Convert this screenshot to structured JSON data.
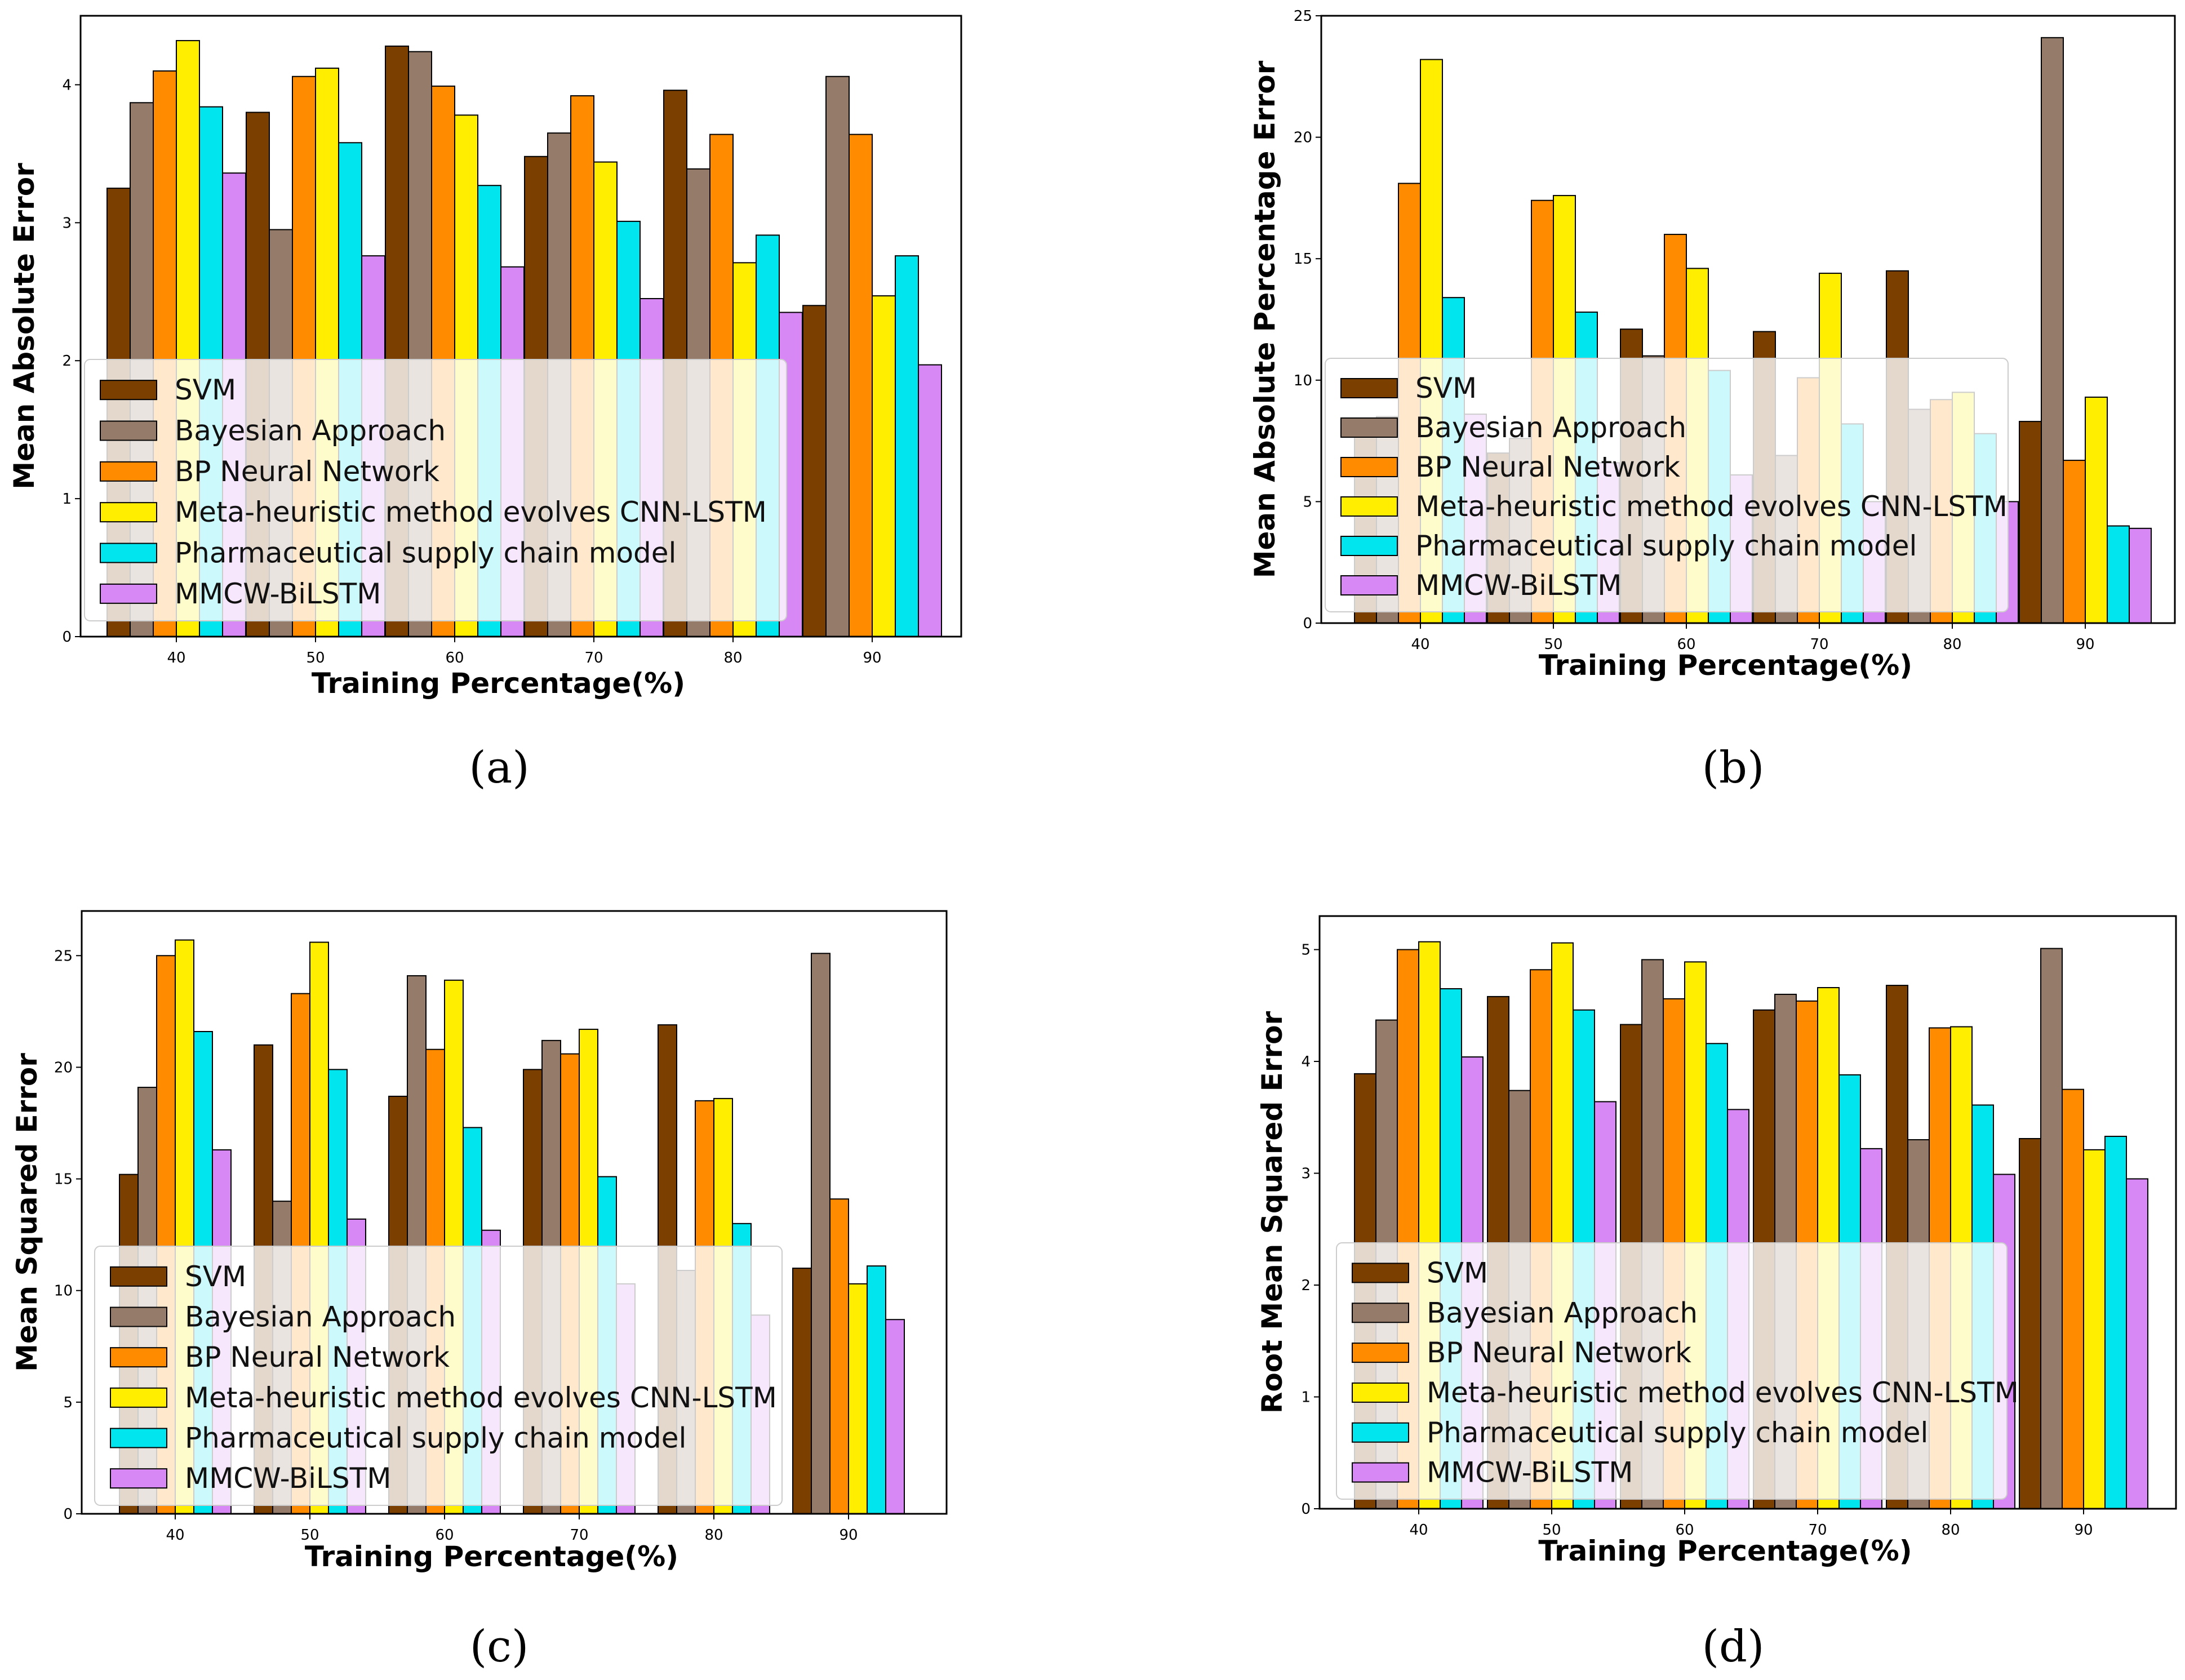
{
  "legend_colors": {
    "SVM": "#7b3f00",
    "Bayesian Approach": "#957b69",
    "BP Neural Network": "#ff8c00",
    "Meta-heuristic method evolves CNN-LSTM": "#ffee00",
    "Pharmaceutical supply chain model": "#00e5ee",
    "MMCW-BiLSTM": "#d888f5"
  },
  "chart_data": [
    {
      "panel": "(a)",
      "type": "bar",
      "xlabel": "Training Percentage(%)",
      "ylabel": "Mean Absolute Error",
      "categories": [
        "40",
        "50",
        "60",
        "70",
        "80",
        "90"
      ],
      "ylim": [
        0,
        4.5
      ],
      "yticks": [
        "0",
        "1",
        "2",
        "3",
        "4"
      ],
      "legend_position": "center-left",
      "series": [
        {
          "name": "SVM",
          "values": [
            3.25,
            3.8,
            4.28,
            3.48,
            3.96,
            2.4
          ]
        },
        {
          "name": "Bayesian Approach",
          "values": [
            3.87,
            2.95,
            4.24,
            3.65,
            3.39,
            4.06
          ]
        },
        {
          "name": "BP Neural Network",
          "values": [
            4.1,
            4.06,
            3.99,
            3.92,
            3.64,
            3.64
          ]
        },
        {
          "name": "Meta-heuristic method evolves CNN-LSTM",
          "values": [
            4.32,
            4.12,
            3.78,
            3.44,
            2.71,
            2.47
          ]
        },
        {
          "name": "Pharmaceutical supply chain model",
          "values": [
            3.84,
            3.58,
            3.27,
            3.01,
            2.91,
            2.76
          ]
        },
        {
          "name": "MMCW-BiLSTM",
          "values": [
            3.36,
            2.76,
            2.68,
            2.45,
            2.35,
            1.97
          ]
        }
      ]
    },
    {
      "panel": "(b)",
      "type": "bar",
      "xlabel": "Training Percentage(%)",
      "ylabel": "Mean Absolute Percentage Error",
      "categories": [
        "40",
        "50",
        "60",
        "70",
        "80",
        "90"
      ],
      "ylim": [
        0,
        25
      ],
      "yticks": [
        "0",
        "5",
        "10",
        "15",
        "20",
        "25"
      ],
      "legend_position": "center-left",
      "series": [
        {
          "name": "SVM",
          "values": [
            8.2,
            7.0,
            12.1,
            12.0,
            14.5,
            8.3
          ]
        },
        {
          "name": "Bayesian Approach",
          "values": [
            8.5,
            7.6,
            11.0,
            6.9,
            8.8,
            24.1
          ]
        },
        {
          "name": "BP Neural Network",
          "values": [
            18.1,
            17.4,
            16.0,
            10.1,
            9.2,
            6.7
          ]
        },
        {
          "name": "Meta-heuristic method evolves CNN-LSTM",
          "values": [
            23.2,
            17.6,
            14.6,
            14.4,
            9.5,
            9.3
          ]
        },
        {
          "name": "Pharmaceutical supply chain model",
          "values": [
            13.4,
            12.8,
            10.4,
            8.2,
            7.8,
            4.0
          ]
        },
        {
          "name": "MMCW-BiLSTM",
          "values": [
            8.6,
            6.6,
            6.1,
            5.0,
            5.0,
            3.9
          ]
        }
      ]
    },
    {
      "panel": "(c)",
      "type": "bar",
      "xlabel": "Training Percentage(%)",
      "ylabel": "Mean Squared Error",
      "categories": [
        "40",
        "50",
        "60",
        "70",
        "80",
        "90"
      ],
      "ylim": [
        0,
        27
      ],
      "yticks": [
        "0",
        "5",
        "10",
        "15",
        "20",
        "25"
      ],
      "legend_position": "center-left",
      "series": [
        {
          "name": "SVM",
          "values": [
            15.2,
            21.0,
            18.7,
            19.9,
            21.9,
            11.0
          ]
        },
        {
          "name": "Bayesian Approach",
          "values": [
            19.1,
            14.0,
            24.1,
            21.2,
            10.9,
            25.1
          ]
        },
        {
          "name": "BP Neural Network",
          "values": [
            25.0,
            23.3,
            20.8,
            20.6,
            18.5,
            14.1
          ]
        },
        {
          "name": "Meta-heuristic method evolves CNN-LSTM",
          "values": [
            25.7,
            25.6,
            23.9,
            21.7,
            18.6,
            10.3
          ]
        },
        {
          "name": "Pharmaceutical supply chain model",
          "values": [
            21.6,
            19.9,
            17.3,
            15.1,
            13.0,
            11.1
          ]
        },
        {
          "name": "MMCW-BiLSTM",
          "values": [
            16.3,
            13.2,
            12.7,
            10.3,
            8.9,
            8.7
          ]
        }
      ]
    },
    {
      "panel": "(d)",
      "type": "bar",
      "xlabel": "Training Percentage(%)",
      "ylabel": "Root Mean Squared Error",
      "categories": [
        "40",
        "50",
        "60",
        "70",
        "80",
        "90"
      ],
      "ylim": [
        0,
        5.3
      ],
      "yticks": [
        "0",
        "1",
        "2",
        "3",
        "4",
        "5"
      ],
      "legend_position": "center-left",
      "series": [
        {
          "name": "SVM",
          "values": [
            3.89,
            4.58,
            4.33,
            4.46,
            4.68,
            3.31
          ]
        },
        {
          "name": "Bayesian Approach",
          "values": [
            4.37,
            3.74,
            4.91,
            4.6,
            3.3,
            5.01
          ]
        },
        {
          "name": "BP Neural Network",
          "values": [
            5.0,
            4.82,
            4.56,
            4.54,
            4.3,
            3.75
          ]
        },
        {
          "name": "Meta-heuristic method evolves CNN-LSTM",
          "values": [
            5.07,
            5.06,
            4.89,
            4.66,
            4.31,
            3.21
          ]
        },
        {
          "name": "Pharmaceutical supply chain model",
          "values": [
            4.65,
            4.46,
            4.16,
            3.88,
            3.61,
            3.33
          ]
        },
        {
          "name": "MMCW-BiLSTM",
          "values": [
            4.04,
            3.64,
            3.57,
            3.22,
            2.99,
            2.95
          ]
        }
      ]
    }
  ]
}
